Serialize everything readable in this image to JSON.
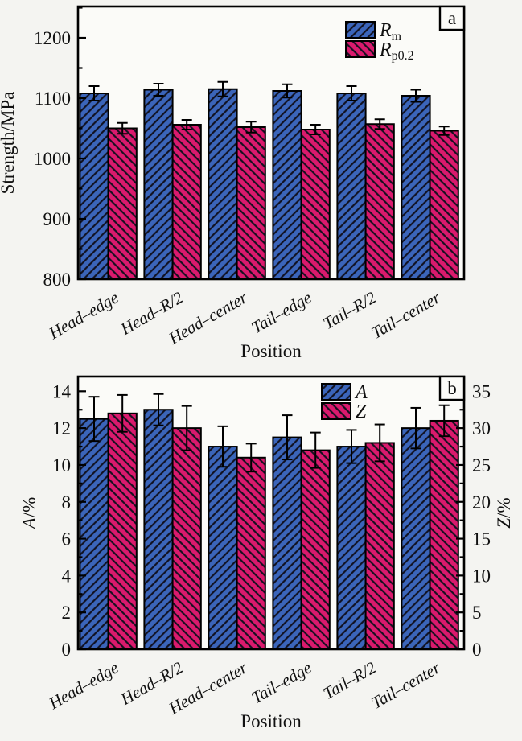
{
  "figure": {
    "background": "#f4f4f1",
    "plot_background": "#fbfbf8",
    "frame_color": "#000000",
    "hatch_color": "#10101e",
    "series_colors": {
      "blue": "#3b65ba",
      "pink": "#da1a6d"
    }
  },
  "chart_data": [
    {
      "type": "bar",
      "panel_label": "a",
      "xlabel": "Position",
      "ylabel": "Strength/MPa",
      "categories": [
        "Head–edge",
        "Head–R/2",
        "Head–center",
        "Tail–edge",
        "Tail–R/2",
        "Tail–center"
      ],
      "ylim": [
        800,
        1252
      ],
      "yticks": [
        800,
        900,
        1000,
        1100,
        1200
      ],
      "minor_tick_step": 50,
      "grid": false,
      "legend_position": "upper-right-inside",
      "series": [
        {
          "name": "Rm",
          "legend_base": "R",
          "legend_sub": "m",
          "color": "#3b65ba",
          "hatch": "forward-diagonal",
          "axis": "left",
          "values": [
            1108,
            1114,
            1115,
            1112,
            1108,
            1104
          ],
          "errors": [
            12,
            10,
            12,
            11,
            12,
            10
          ]
        },
        {
          "name": "Rp0.2",
          "legend_base": "R",
          "legend_sub": "p0.2",
          "color": "#da1a6d",
          "hatch": "backward-diagonal",
          "axis": "left",
          "values": [
            1050,
            1056,
            1052,
            1048,
            1057,
            1046
          ],
          "errors": [
            9,
            8,
            9,
            8,
            8,
            7
          ]
        }
      ]
    },
    {
      "type": "bar",
      "panel_label": "b",
      "xlabel": "Position",
      "ylabel": "A/%",
      "ylabel_right": "Z/%",
      "categories": [
        "Head–edge",
        "Head–R/2",
        "Head–center",
        "Tail–edge",
        "Tail–R/2",
        "Tail–center"
      ],
      "ylim": [
        0,
        14.8
      ],
      "yticks": [
        0,
        2,
        4,
        6,
        8,
        10,
        12,
        14
      ],
      "minor_tick_step": 1,
      "ylim_right": [
        0,
        37
      ],
      "yticks_right": [
        0,
        5,
        10,
        15,
        20,
        25,
        30,
        35
      ],
      "minor_tick_step_right": 2.5,
      "grid": false,
      "legend_position": "upper-right-inside",
      "series": [
        {
          "name": "A",
          "legend_base": "A",
          "legend_sub": "",
          "color": "#3b65ba",
          "hatch": "forward-diagonal",
          "axis": "left",
          "values": [
            12.5,
            13.0,
            11.0,
            11.5,
            11.0,
            12.0
          ],
          "errors": [
            1.2,
            0.85,
            1.1,
            1.2,
            0.9,
            1.1
          ]
        },
        {
          "name": "Z",
          "legend_base": "Z",
          "legend_sub": "",
          "color": "#da1a6d",
          "hatch": "backward-diagonal",
          "axis": "right",
          "values": [
            32,
            30,
            26,
            27,
            28,
            31
          ],
          "errors": [
            2.5,
            3.0,
            1.9,
            2.4,
            2.5,
            2.1
          ]
        }
      ]
    }
  ]
}
